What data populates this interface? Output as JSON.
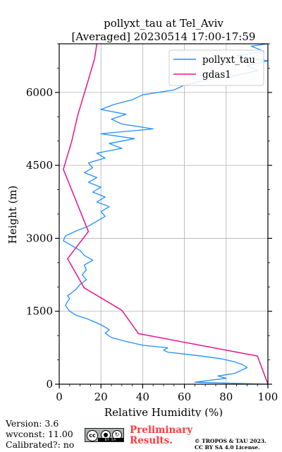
{
  "chart_data": {
    "type": "line",
    "title_line1": "pollyxt_tau at Tel_Aviv",
    "title_line2": "[Averaged] 20230514 17:00-17:59",
    "xlabel": "Relative Humidity (%)",
    "ylabel": "Height (m)",
    "xlim": [
      0,
      100
    ],
    "ylim": [
      0,
      7000
    ],
    "xticks": [
      0,
      20,
      40,
      60,
      80,
      100
    ],
    "yticks": [
      0,
      1500,
      3000,
      4500,
      6000
    ],
    "grid": true,
    "legend_position": "top-right",
    "series": [
      {
        "name": "pollyxt_tau",
        "color": "#1f8fff",
        "points": [
          [
            100,
            0
          ],
          [
            65,
            40
          ],
          [
            72,
            80
          ],
          [
            80,
            120
          ],
          [
            76,
            170
          ],
          [
            84,
            220
          ],
          [
            87,
            280
          ],
          [
            90,
            340
          ],
          [
            88,
            400
          ],
          [
            84,
            460
          ],
          [
            78,
            520
          ],
          [
            70,
            570
          ],
          [
            60,
            620
          ],
          [
            52,
            660
          ],
          [
            50,
            700
          ],
          [
            52,
            750
          ],
          [
            40,
            800
          ],
          [
            32,
            880
          ],
          [
            25,
            960
          ],
          [
            22,
            1050
          ],
          [
            24,
            1120
          ],
          [
            21,
            1200
          ],
          [
            17,
            1280
          ],
          [
            13,
            1350
          ],
          [
            8,
            1420
          ],
          [
            5,
            1500
          ],
          [
            4,
            1560
          ],
          [
            3,
            1620
          ],
          [
            4,
            1700
          ],
          [
            5,
            1760
          ],
          [
            4,
            1820
          ],
          [
            6,
            1880
          ],
          [
            8,
            1950
          ],
          [
            10,
            2050
          ],
          [
            13,
            2150
          ],
          [
            11,
            2250
          ],
          [
            13,
            2350
          ],
          [
            12,
            2450
          ],
          [
            16,
            2550
          ],
          [
            12,
            2650
          ],
          [
            10,
            2750
          ],
          [
            6,
            2850
          ],
          [
            2,
            2950
          ],
          [
            3,
            3050
          ],
          [
            8,
            3150
          ],
          [
            14,
            3250
          ],
          [
            18,
            3350
          ],
          [
            22,
            3450
          ],
          [
            20,
            3550
          ],
          [
            24,
            3650
          ],
          [
            18,
            3750
          ],
          [
            22,
            3850
          ],
          [
            16,
            3950
          ],
          [
            20,
            4050
          ],
          [
            14,
            4150
          ],
          [
            18,
            4250
          ],
          [
            12,
            4350
          ],
          [
            16,
            4450
          ],
          [
            14,
            4550
          ],
          [
            22,
            4650
          ],
          [
            18,
            4750
          ],
          [
            30,
            4850
          ],
          [
            24,
            4950
          ],
          [
            36,
            5050
          ],
          [
            20,
            5150
          ],
          [
            45,
            5250
          ],
          [
            30,
            5350
          ],
          [
            25,
            5450
          ],
          [
            32,
            5550
          ],
          [
            20,
            5650
          ],
          [
            26,
            5750
          ],
          [
            35,
            5850
          ],
          [
            40,
            5950
          ],
          [
            55,
            6050
          ],
          [
            60,
            6150
          ],
          [
            70,
            6250
          ],
          [
            85,
            6350
          ],
          [
            95,
            6450
          ],
          [
            90,
            6550
          ],
          [
            100,
            6650
          ],
          [
            85,
            6750
          ],
          [
            98,
            6850
          ],
          [
            92,
            6950
          ],
          [
            100,
            7000
          ]
        ]
      },
      {
        "name": "gdas1",
        "color": "#e8138f",
        "points": [
          [
            100,
            0
          ],
          [
            95,
            580
          ],
          [
            38,
            1040
          ],
          [
            30,
            1520
          ],
          [
            12,
            1980
          ],
          [
            4,
            2580
          ],
          [
            14,
            3140
          ],
          [
            2,
            4420
          ],
          [
            6,
            5000
          ],
          [
            9,
            5550
          ],
          [
            13,
            6120
          ],
          [
            17,
            6700
          ],
          [
            18,
            7000
          ]
        ]
      }
    ]
  },
  "footer": {
    "version": "Version: 3.6",
    "wvconst": "wvconst:  11.00",
    "calibrated": "Calibrated?: no",
    "preliminary_line1": "Preliminary",
    "preliminary_line2": "Results.",
    "copyright_line1": "© TROPOS & TAU 2023.",
    "copyright_line2": "CC BY SA 4.0 License.",
    "license_icon": "cc-by-sa-icon"
  }
}
